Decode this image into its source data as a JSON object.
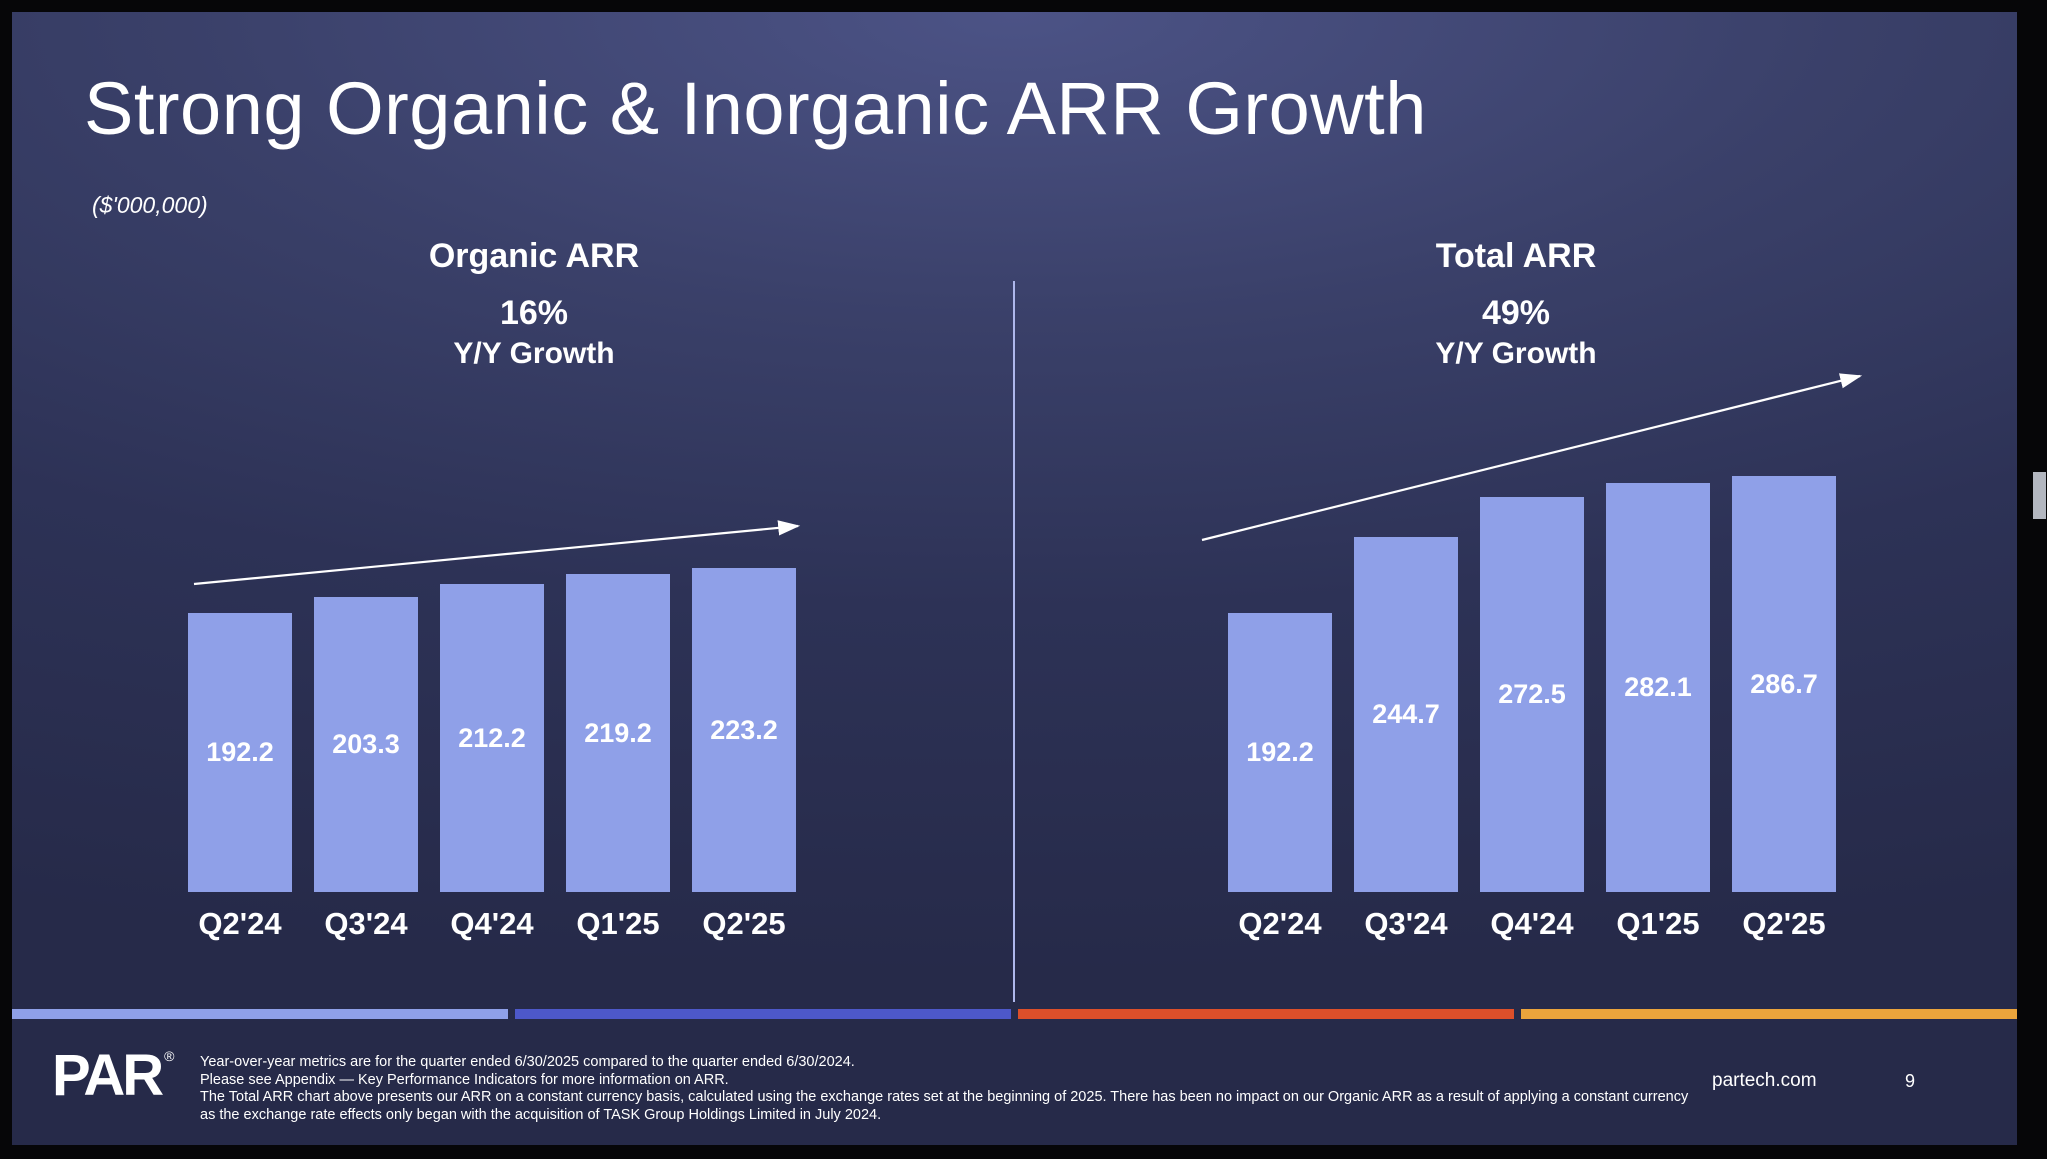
{
  "slide": {
    "title": "Strong Organic & Inorganic ARR Growth",
    "units_note": "($'000,000)",
    "footer": {
      "logo_text": "PAR",
      "registered_mark": "®",
      "website": "partech.com",
      "page_number": "9",
      "footnotes": [
        "Year-over-year metrics are for the quarter ended 6/30/2025 compared to the quarter ended 6/30/2024.",
        "Please see Appendix — Key Performance Indicators for more information on ARR.",
        "The Total ARR chart above presents our ARR on a constant currency basis, calculated using the exchange rates set at the beginning of 2025. There has been no impact on our Organic ARR as a result of applying a constant currency",
        "as the exchange rate effects only began with the acquisition of TASK Group Holdings Limited in July 2024."
      ]
    }
  },
  "chart_data": [
    {
      "type": "bar",
      "title": "Organic ARR",
      "growth_pct": "16%",
      "growth_caption": "Y/Y Growth",
      "categories": [
        "Q2'24",
        "Q3'24",
        "Q4'24",
        "Q1'25",
        "Q2'25"
      ],
      "values": [
        192.2,
        203.3,
        212.2,
        219.2,
        223.2
      ],
      "value_labels_inside_bars": true,
      "trend_arrow": "upward",
      "legend_position": "none",
      "grid": false
    },
    {
      "type": "bar",
      "title": "Total ARR",
      "growth_pct": "49%",
      "growth_caption": "Y/Y Growth",
      "categories": [
        "Q2'24",
        "Q3'24",
        "Q4'24",
        "Q1'25",
        "Q2'25"
      ],
      "values": [
        192.2,
        244.7,
        272.5,
        282.1,
        286.7
      ],
      "value_labels_inside_bars": true,
      "trend_arrow": "upward",
      "legend_position": "none",
      "grid": false
    }
  ],
  "colors": {
    "bar_fill": "#8FA0E8",
    "value_text": "#FFFFFF",
    "divider": "#AEB7EC",
    "arrow": "#FFFFFF",
    "stripe_segments": [
      "#8FA0E8",
      "#4D58C9",
      "#DC4F2A",
      "#EBA43C"
    ],
    "background_center": "#4C5386",
    "background_edge": "#262A49",
    "text": "#FFFFFF"
  }
}
